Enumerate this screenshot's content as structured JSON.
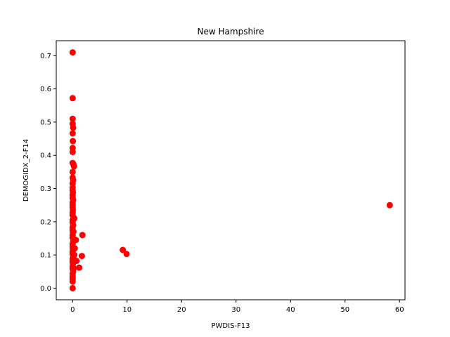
{
  "chart_data": {
    "type": "scatter",
    "title": "New Hampshire",
    "xlabel": "PWDIS-F13",
    "ylabel": "DEMOGIDX_2-F14",
    "xlim": [
      -3.0,
      61.0
    ],
    "ylim": [
      -0.035,
      0.745
    ],
    "xticks": [
      0,
      10,
      20,
      30,
      40,
      50,
      60
    ],
    "yticks": [
      0.0,
      0.1,
      0.2,
      0.3,
      0.4,
      0.5,
      0.6,
      0.7
    ],
    "xtick_labels": [
      "0",
      "10",
      "20",
      "30",
      "40",
      "50",
      "60"
    ],
    "ytick_labels": [
      "0.0",
      "0.1",
      "0.2",
      "0.3",
      "0.4",
      "0.5",
      "0.6",
      "0.7"
    ],
    "grid": false,
    "marker_color": "#ff0000",
    "series": [
      {
        "points": [
          [
            0.0,
            0.71
          ],
          [
            0.0,
            0.572
          ],
          [
            0.0,
            0.51
          ],
          [
            0.0,
            0.495
          ],
          [
            0.1,
            0.483
          ],
          [
            0.0,
            0.466
          ],
          [
            0.05,
            0.443
          ],
          [
            0.0,
            0.422
          ],
          [
            0.0,
            0.41
          ],
          [
            0.0,
            0.377
          ],
          [
            0.15,
            0.373
          ],
          [
            0.25,
            0.367
          ],
          [
            0.0,
            0.35
          ],
          [
            0.0,
            0.333
          ],
          [
            0.1,
            0.325
          ],
          [
            0.0,
            0.315
          ],
          [
            0.0,
            0.303
          ],
          [
            0.0,
            0.295
          ],
          [
            0.05,
            0.288
          ],
          [
            0.0,
            0.28
          ],
          [
            0.0,
            0.272
          ],
          [
            0.1,
            0.265
          ],
          [
            0.0,
            0.258
          ],
          [
            0.0,
            0.25
          ],
          [
            0.0,
            0.243
          ],
          [
            0.05,
            0.236
          ],
          [
            0.0,
            0.228
          ],
          [
            0.0,
            0.22
          ],
          [
            0.15,
            0.213
          ],
          [
            0.3,
            0.21
          ],
          [
            0.0,
            0.205
          ],
          [
            0.0,
            0.198
          ],
          [
            0.1,
            0.19
          ],
          [
            0.0,
            0.183
          ],
          [
            0.0,
            0.175
          ],
          [
            0.05,
            0.168
          ],
          [
            0.0,
            0.16
          ],
          [
            0.0,
            0.152
          ],
          [
            0.6,
            0.145
          ],
          [
            0.1,
            0.14
          ],
          [
            0.0,
            0.133
          ],
          [
            0.0,
            0.125
          ],
          [
            0.05,
            0.118
          ],
          [
            0.0,
            0.11
          ],
          [
            0.0,
            0.103
          ],
          [
            0.1,
            0.095
          ],
          [
            0.0,
            0.088
          ],
          [
            0.0,
            0.08
          ],
          [
            0.7,
            0.082
          ],
          [
            0.05,
            0.073
          ],
          [
            0.0,
            0.065
          ],
          [
            0.0,
            0.058
          ],
          [
            0.1,
            0.05
          ],
          [
            0.0,
            0.043
          ],
          [
            0.0,
            0.035
          ],
          [
            0.0,
            0.028
          ],
          [
            0.0,
            0.02
          ],
          [
            0.0,
            0.0
          ],
          [
            0.2,
            0.06
          ],
          [
            0.3,
            0.1
          ],
          [
            0.4,
            0.12
          ],
          [
            0.15,
            0.17
          ],
          [
            1.8,
            0.16
          ],
          [
            1.7,
            0.097
          ],
          [
            1.2,
            0.062
          ],
          [
            9.2,
            0.115
          ],
          [
            9.9,
            0.103
          ],
          [
            58.2,
            0.25
          ]
        ]
      }
    ]
  }
}
